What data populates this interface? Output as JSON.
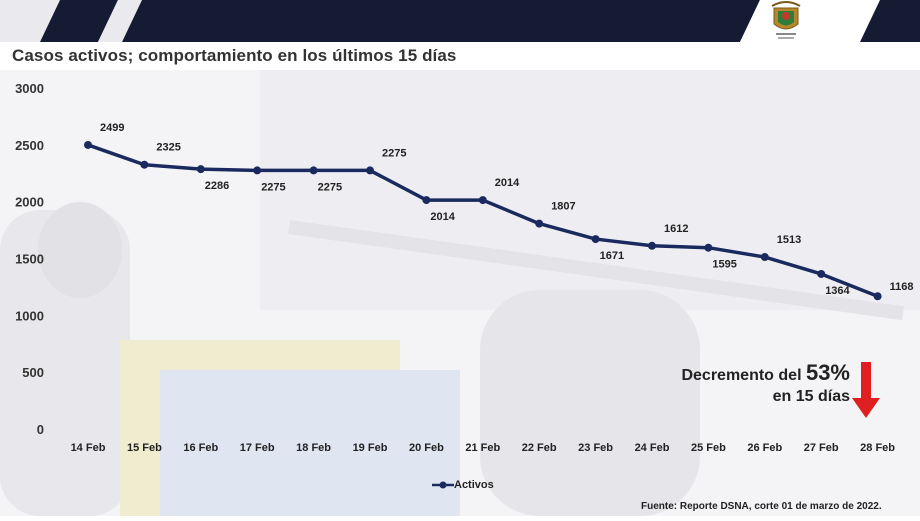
{
  "header": {
    "logo_icon": "coat-of-arms-icon"
  },
  "chart_title": "Casos activos; comportamiento en los últimos 15 días",
  "chart_data": {
    "type": "line",
    "categories": [
      "14 Feb",
      "15 Feb",
      "16 Feb",
      "17 Feb",
      "18 Feb",
      "19 Feb",
      "20 Feb",
      "21 Feb",
      "22 Feb",
      "23 Feb",
      "24 Feb",
      "25 Feb",
      "26 Feb",
      "27 Feb",
      "28 Feb"
    ],
    "series": [
      {
        "name": "Activos",
        "values": [
          2499,
          2325,
          2286,
          2275,
          2275,
          2275,
          2014,
          2014,
          1807,
          1671,
          1612,
          1595,
          1513,
          1364,
          1168
        ],
        "color": "#1b2a5e"
      }
    ],
    "yticks": [
      0,
      500,
      1000,
      1500,
      2000,
      2500,
      3000
    ],
    "ylim": [
      0,
      3000
    ],
    "grid": false,
    "legend": "bottom"
  },
  "annotation": {
    "prefix": "Decremento del ",
    "percent": "53%",
    "suffix": "en 15 días",
    "arrow_color": "#e02020",
    "arrow_icon": "down-arrow-icon"
  },
  "legend_label": "Activos",
  "source": "Fuente: Reporte DSNA, corte 01 de marzo de 2022."
}
